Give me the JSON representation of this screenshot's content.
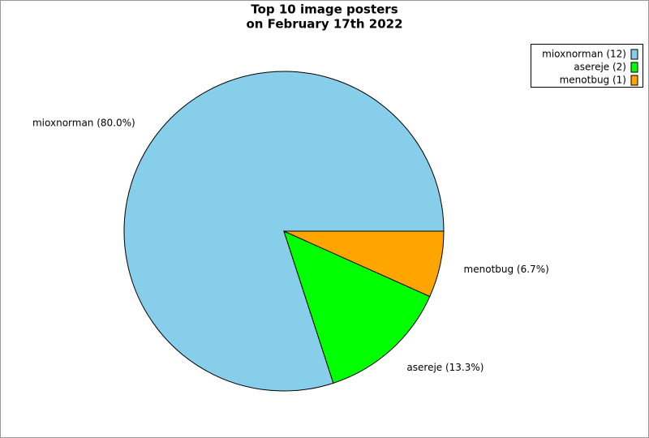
{
  "chart_data": {
    "type": "pie",
    "title": [
      "Top 10 image posters",
      "on February 17th 2022"
    ],
    "values": [
      80.0,
      13.3,
      6.7
    ],
    "value_labels": [
      "mioxnorman (80.0%)",
      "asereje (13.3%)",
      "menotbug (6.7%)"
    ],
    "legend": [
      "mioxnorman (12)",
      "asereje (2)",
      "menotbug (1)"
    ],
    "colors": [
      "#87ceeb",
      "#00ff00",
      "#ffa500"
    ]
  }
}
